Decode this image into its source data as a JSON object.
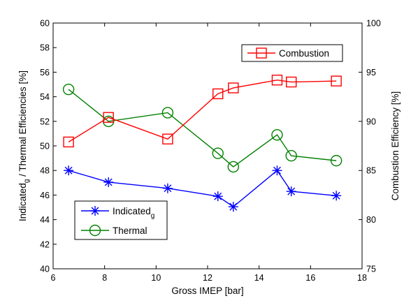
{
  "chart_data": {
    "type": "line",
    "xlabel": "Gross IMEP [bar]",
    "ylabel": "Indicated",
    "ylabel_sub": "g",
    "ylabel_rest": " / Thermal Efficiencies [%]",
    "y2label": "Combustion Efficiency [%]",
    "xlim": [
      6,
      18
    ],
    "ylim": [
      40,
      60
    ],
    "y2lim": [
      75,
      100
    ],
    "xticks": [
      "6",
      "8",
      "10",
      "12",
      "14",
      "16",
      "18"
    ],
    "yticks": [
      "40",
      "42",
      "44",
      "46",
      "48",
      "50",
      "52",
      "54",
      "56",
      "58",
      "60"
    ],
    "y2ticks": [
      "75",
      "80",
      "85",
      "90",
      "95",
      "100"
    ],
    "series": [
      {
        "name": "Indicated",
        "name_sub": "g",
        "axis": "left",
        "color": "#0000ff",
        "marker": "asterisk",
        "x": [
          6.6,
          8.15,
          10.45,
          12.4,
          13.0,
          14.7,
          15.25,
          17.0
        ],
        "y": [
          48.0,
          47.05,
          46.55,
          45.9,
          45.05,
          48.0,
          46.3,
          45.95
        ]
      },
      {
        "name": "Thermal",
        "axis": "left",
        "color": "#008000",
        "marker": "circle",
        "x": [
          6.6,
          8.15,
          10.45,
          12.4,
          13.0,
          14.7,
          15.25,
          17.0
        ],
        "y": [
          54.6,
          52.0,
          52.7,
          49.4,
          48.3,
          50.9,
          49.2,
          48.8
        ]
      },
      {
        "name": "Combustion",
        "axis": "right",
        "color": "#ff0000",
        "marker": "square",
        "x": [
          6.6,
          8.15,
          10.45,
          12.4,
          13.0,
          14.7,
          15.25,
          17.0
        ],
        "y": [
          87.9,
          90.4,
          88.2,
          92.8,
          93.4,
          94.2,
          94.0,
          94.1
        ]
      }
    ],
    "legend_left_placement": "bottom-left",
    "legend_right_placement": "top-right",
    "grid": false
  }
}
